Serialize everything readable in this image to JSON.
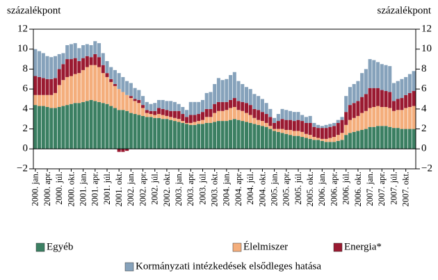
{
  "chart_data": {
    "type": "stacked_bar",
    "y_label": "százalékpont",
    "y2_label": "százalékpont",
    "ylim": [
      -2,
      12
    ],
    "yticks": [
      {
        "value": -2,
        "label": "−2"
      },
      0,
      2,
      4,
      6,
      8,
      10,
      12
    ],
    "y2lim": [
      -2,
      12
    ],
    "y2ticks": [
      {
        "value": -2,
        "label": "−2"
      },
      0,
      2,
      4,
      6,
      8,
      10,
      12
    ],
    "categories": [
      "2000. jan.",
      null,
      null,
      "2000. apr.",
      null,
      null,
      "2000. júl.",
      null,
      null,
      "2000. okt.",
      null,
      null,
      "2001. jan.",
      null,
      null,
      "2001. apr.",
      null,
      null,
      "2001. júl.",
      null,
      null,
      "2001. okt.",
      null,
      null,
      "2002. jan.",
      null,
      null,
      "2002. apr.",
      null,
      null,
      "2002. júl.",
      null,
      null,
      "2002. okt.",
      null,
      null,
      "2003. jan.",
      null,
      null,
      "2003. apr.",
      null,
      null,
      "2003. júl.",
      null,
      null,
      "2003. okt.",
      null,
      null,
      "2004. jan.",
      null,
      null,
      "2004. apr.",
      null,
      null,
      "2004. júl.",
      null,
      null,
      "2004. okt.",
      null,
      null,
      "2005. jan.",
      null,
      null,
      "2005. apr.",
      null,
      null,
      "2005. júl.",
      null,
      null,
      "2005. okt.",
      null,
      null,
      "2006. jan.",
      null,
      null,
      "2006. apr.",
      null,
      null,
      "2006. júl.",
      null,
      null,
      "2006. okt.",
      null,
      null,
      "2007. jan.",
      null,
      null,
      "2007. apr.",
      null,
      null,
      "2007. júl.",
      null,
      null,
      "2007. okt.",
      null,
      null
    ],
    "series": [
      {
        "name": "Egyéb",
        "color": "#3b7f62",
        "values": [
          4.4,
          4.3,
          4.3,
          4.2,
          4.1,
          4.1,
          4.2,
          4.3,
          4.4,
          4.5,
          4.6,
          4.6,
          4.7,
          4.8,
          4.9,
          4.8,
          4.7,
          4.6,
          4.5,
          4.3,
          4.1,
          3.9,
          3.9,
          3.8,
          3.6,
          3.5,
          3.4,
          3.3,
          3.2,
          3.2,
          3.1,
          3.1,
          3.0,
          3.0,
          2.9,
          2.8,
          2.7,
          2.6,
          2.5,
          2.4,
          2.4,
          2.5,
          2.5,
          2.6,
          2.6,
          2.7,
          2.8,
          2.8,
          2.8,
          2.9,
          3.0,
          2.9,
          2.8,
          2.7,
          2.6,
          2.5,
          2.4,
          2.3,
          2.2,
          2.0,
          1.8,
          1.7,
          1.6,
          1.5,
          1.4,
          1.3,
          1.3,
          1.2,
          1.1,
          1.0,
          0.9,
          0.9,
          0.8,
          0.7,
          0.7,
          0.7,
          0.8,
          0.9,
          1.4,
          1.6,
          1.7,
          1.8,
          1.9,
          2.0,
          2.2,
          2.2,
          2.3,
          2.3,
          2.3,
          2.2,
          2.1,
          2.1,
          2.0,
          2.0,
          2.0,
          2.0
        ]
      },
      {
        "name": "Élelmiszer",
        "color": "#f4ae7c",
        "values": [
          1.0,
          1.1,
          1.1,
          1.2,
          1.3,
          1.5,
          2.2,
          2.6,
          2.8,
          2.8,
          2.9,
          3.0,
          3.2,
          3.4,
          3.5,
          3.6,
          3.5,
          3.0,
          2.7,
          2.4,
          2.2,
          2.1,
          1.8,
          1.6,
          1.5,
          1.3,
          1.2,
          0.8,
          0.4,
          0.3,
          0.3,
          0.4,
          0.4,
          0.3,
          0.3,
          0.3,
          0.3,
          0.2,
          0.1,
          0.2,
          0.3,
          0.3,
          0.4,
          0.6,
          0.6,
          0.9,
          1.0,
          1.0,
          1.1,
          1.2,
          1.2,
          1.0,
          1.0,
          0.9,
          0.8,
          0.6,
          0.5,
          0.5,
          0.4,
          0.3,
          0.2,
          0.3,
          0.4,
          0.4,
          0.5,
          0.5,
          0.5,
          0.5,
          0.4,
          0.4,
          0.3,
          0.2,
          0.2,
          0.3,
          0.4,
          0.5,
          0.6,
          0.7,
          1.0,
          1.3,
          1.4,
          1.5,
          1.7,
          1.8,
          1.9,
          2.0,
          2.0,
          1.9,
          1.9,
          1.9,
          1.7,
          1.8,
          1.9,
          2.1,
          2.2,
          2.3
        ]
      },
      {
        "name": "Energia*",
        "color": "#9a1a31",
        "values": [
          1.9,
          1.8,
          1.7,
          1.6,
          1.6,
          1.5,
          1.6,
          1.6,
          1.8,
          1.7,
          1.6,
          1.2,
          1.2,
          1.1,
          0.8,
          1.1,
          1.0,
          0.8,
          0.4,
          0.3,
          0.2,
          -0.3,
          -0.3,
          -0.2,
          0.2,
          0.2,
          0.3,
          0.3,
          0.3,
          0.3,
          0.4,
          0.6,
          0.6,
          0.6,
          0.6,
          0.7,
          0.8,
          0.7,
          0.6,
          0.8,
          0.7,
          0.7,
          0.8,
          0.8,
          0.8,
          0.9,
          0.9,
          0.9,
          0.8,
          0.8,
          0.9,
          0.9,
          0.9,
          1.0,
          1.0,
          0.9,
          1.0,
          0.9,
          0.9,
          0.9,
          0.6,
          0.8,
          1.0,
          1.0,
          1.0,
          1.0,
          1.1,
          1.1,
          1.1,
          1.2,
          1.0,
          1.0,
          1.1,
          1.1,
          1.1,
          1.1,
          1.2,
          1.3,
          1.3,
          1.5,
          1.5,
          1.5,
          1.6,
          1.7,
          2.0,
          1.9,
          1.8,
          1.7,
          1.6,
          1.6,
          1.0,
          1.1,
          1.2,
          1.3,
          1.4,
          1.5
        ]
      },
      {
        "name": "Kormányzati intézkedések elsődleges hatása",
        "color": "#86a2bb",
        "values": [
          2.7,
          2.6,
          2.5,
          2.3,
          2.2,
          2.2,
          1.5,
          1.1,
          1.4,
          1.5,
          1.5,
          1.3,
          1.3,
          1.2,
          1.2,
          1.3,
          1.4,
          1.2,
          1.2,
          1.2,
          1.4,
          1.6,
          1.5,
          1.4,
          1.3,
          1.1,
          1.0,
          0.9,
          0.8,
          0.7,
          0.8,
          0.8,
          0.9,
          0.9,
          1.0,
          0.9,
          0.7,
          0.7,
          0.7,
          1.3,
          1.3,
          1.2,
          1.2,
          1.6,
          1.7,
          2.0,
          2.4,
          2.2,
          2.3,
          2.5,
          2.6,
          2.0,
          1.8,
          1.6,
          1.6,
          1.5,
          1.4,
          1.3,
          1.1,
          0.8,
          0.5,
          0.7,
          1.0,
          1.0,
          0.9,
          0.9,
          0.8,
          0.6,
          0.6,
          0.7,
          0.4,
          0.3,
          0.2,
          0.3,
          0.3,
          0.3,
          0.3,
          0.3,
          1.6,
          1.8,
          1.9,
          2.0,
          2.4,
          2.5,
          2.9,
          2.8,
          2.6,
          2.6,
          2.6,
          2.6,
          1.8,
          1.8,
          1.9,
          1.8,
          1.9,
          2.0
        ]
      }
    ]
  }
}
